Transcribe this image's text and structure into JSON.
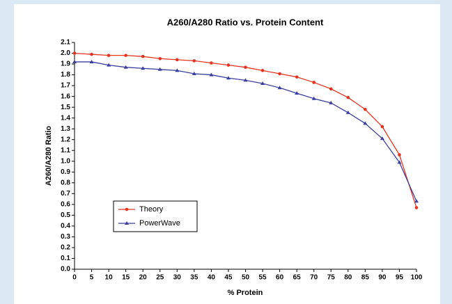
{
  "chart_data": {
    "type": "line",
    "title": "A260/A280 Ratio vs. Protein Content",
    "x_label": "% Protein",
    "y_label": "A260/A280 Ratio",
    "x": [
      0,
      5,
      10,
      15,
      20,
      25,
      30,
      35,
      40,
      45,
      50,
      55,
      60,
      65,
      70,
      75,
      80,
      85,
      90,
      95,
      100
    ],
    "series": [
      {
        "name": "Theory",
        "color": "#e8321e",
        "marker": "circle",
        "values": [
          2.0,
          1.99,
          1.98,
          1.98,
          1.97,
          1.95,
          1.94,
          1.93,
          1.91,
          1.89,
          1.87,
          1.84,
          1.81,
          1.78,
          1.73,
          1.67,
          1.59,
          1.48,
          1.32,
          1.06,
          0.57
        ]
      },
      {
        "name": "PowerWave",
        "color": "#3a3ea0",
        "marker": "triangle",
        "values": [
          1.92,
          1.92,
          1.89,
          1.87,
          1.86,
          1.85,
          1.84,
          1.81,
          1.8,
          1.77,
          1.75,
          1.72,
          1.68,
          1.63,
          1.58,
          1.54,
          1.45,
          1.35,
          1.21,
          0.99,
          0.63
        ]
      }
    ],
    "xlim": [
      0,
      100
    ],
    "xticks": [
      0,
      5,
      10,
      15,
      20,
      25,
      30,
      35,
      40,
      45,
      50,
      55,
      60,
      65,
      70,
      75,
      80,
      85,
      90,
      95,
      100
    ],
    "ylim": [
      0,
      2.1
    ],
    "yticks": [
      {
        "value": 0,
        "label": "0.0"
      },
      0.1,
      0.2,
      0.3,
      0.4,
      0.5,
      0.6,
      0.7,
      0.8,
      0.9,
      {
        "value": 1,
        "label": "1.0"
      },
      1.1,
      1.2,
      1.3,
      1.4,
      1.5,
      1.6,
      1.7,
      1.8,
      1.9,
      {
        "value": 2,
        "label": "2.0"
      },
      2.1
    ],
    "legend": "lower-left"
  }
}
